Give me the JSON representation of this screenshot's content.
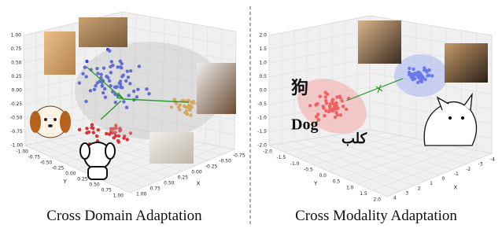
{
  "panels": [
    {
      "caption": "Cross Domain Adaptation",
      "z_ticks": [
        "1.00",
        "0.75",
        "0.50",
        "0.25",
        "0.00",
        "-0.25",
        "-0.50",
        "-0.75",
        "-1.00"
      ],
      "y_ticks": [
        "-1.00",
        "-0.75",
        "-0.50",
        "-0.25",
        "0.00",
        "0.25",
        "0.50",
        "0.75",
        "1.00"
      ],
      "y_label": "Y",
      "x_ticks": [
        "-0.75",
        "-0.50",
        "-0.25",
        "0.00",
        "0.25",
        "0.50",
        "0.75",
        "1.00"
      ],
      "x_label": "X"
    },
    {
      "caption": "Cross Modality Adaptation",
      "z_ticks": [
        "2.0",
        "1.5",
        "1.0",
        "0.5",
        "0.0",
        "-0.5",
        "-1.0",
        "-1.5",
        "-2.0"
      ],
      "y_ticks": [
        "-2.0",
        "-1.5",
        "-1.0",
        "-0.5",
        "0.0",
        "0.5",
        "1.0",
        "1.5",
        "2.0"
      ],
      "y_label": "Y",
      "x_ticks": [
        "-4",
        "-3",
        "-2",
        "-1",
        "0",
        "1",
        "2",
        "3",
        "4"
      ],
      "x_label": "X",
      "words": [
        "狗",
        "Dog",
        "كلب"
      ]
    }
  ]
}
